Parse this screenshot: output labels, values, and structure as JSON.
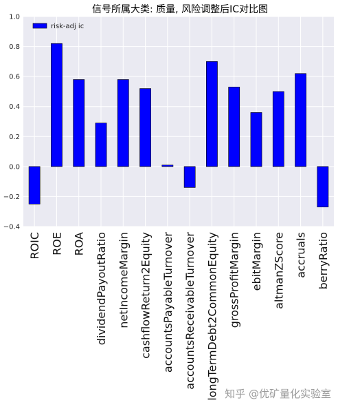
{
  "chart_data": {
    "type": "bar",
    "title": "信号所属大类: 质量, 风险调整后IC对比图",
    "xlabel": "",
    "ylabel": "",
    "ylim": [
      -0.4,
      1.0
    ],
    "yticks": [
      "1.0",
      "0.8",
      "0.6",
      "0.4",
      "0.2",
      "0.0",
      "−0.2",
      "−0.4"
    ],
    "ytick_values": [
      1.0,
      0.8,
      0.6,
      0.4,
      0.2,
      0.0,
      -0.2,
      -0.4
    ],
    "grid": true,
    "legend": "top-left",
    "categories": [
      "ROIC",
      "ROE",
      "ROA",
      "dividendPayoutRatio",
      "netIncomeMargin",
      "cashflowReturn2Equity",
      "accountsPayableTurnover",
      "accountsReceivableTurnover",
      "longTermDebt2CommonEquity",
      "grossProfitMargin",
      "ebitMargin",
      "altmanZScore",
      "accruals",
      "berryRatio"
    ],
    "series": [
      {
        "name": "risk-adj ic",
        "color": "#0000ff",
        "values": [
          -0.25,
          0.82,
          0.58,
          0.29,
          0.58,
          0.52,
          0.01,
          -0.14,
          0.7,
          0.53,
          0.36,
          0.5,
          0.62,
          -0.27
        ]
      }
    ]
  },
  "watermark": "知乎 @优矿量化实验室"
}
